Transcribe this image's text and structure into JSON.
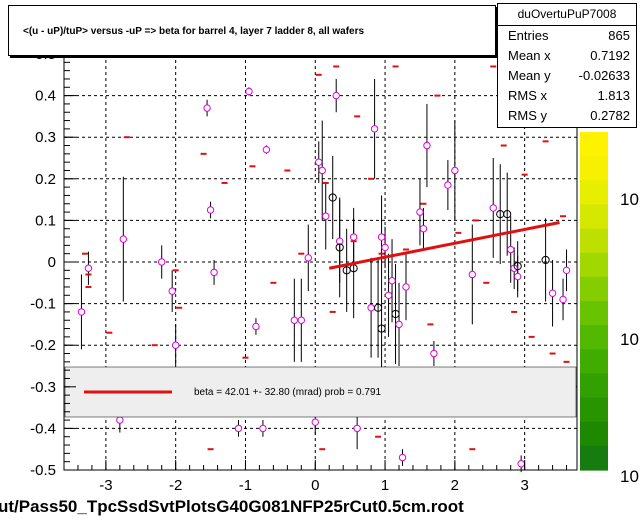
{
  "title": "<(u - uP)/tuP> versus  -uP => beta for barrel 4, layer 7 ladder 8, all wafers",
  "file_label": "ut/Pass50_TpcSsdSvtPlotsG40G081NFP25rCut0.5cm.root",
  "stats": {
    "name": "duOvertuPuP7008",
    "rows": [
      {
        "label": "Entries",
        "value": "865"
      },
      {
        "label": "Mean x",
        "value": "0.7192"
      },
      {
        "label": "Mean y",
        "value": "-0.02633"
      },
      {
        "label": "RMS x",
        "value": "1.813"
      },
      {
        "label": "RMS y",
        "value": "0.2782"
      }
    ]
  },
  "colors": {
    "fit_line": "#e01010",
    "marker_magenta": "#e000e0",
    "marker_black": "#000000",
    "mean_dash": "#e01010",
    "grid": "#000000",
    "legend_bg": "#eeeeee"
  },
  "chart_data": {
    "type": "scatter",
    "title": "<(u - uP)/tuP> versus  -uP => beta for barrel 4, layer 7 ladder 8, all wafers",
    "xlim": [
      -3.6,
      3.75
    ],
    "ylim": [
      -0.5,
      0.5
    ],
    "x_ticks": [
      -3,
      -2,
      -1,
      0,
      1,
      2,
      3
    ],
    "y_ticks": [
      -0.5,
      -0.4,
      -0.3,
      -0.2,
      -0.1,
      0,
      0.1,
      0.2,
      0.3,
      0.4,
      0.5
    ],
    "x_tick_labels": [
      "-3",
      "-2",
      "-1",
      "0",
      "1",
      "2",
      "3"
    ],
    "y_tick_labels": [
      "-0.5",
      "-0.4",
      "-0.3",
      "-0.2",
      "-0.1",
      "0",
      "0.1",
      "0.2",
      "0.3",
      "0.4",
      "0.5"
    ],
    "grid": true,
    "fit": {
      "x": [
        0.2,
        3.5
      ],
      "y": [
        -0.015,
        0.095
      ],
      "label": "beta =   42.01 +- 32.80 (mrad) prob = 0.791"
    },
    "colorbar_labels": [
      "10",
      "10",
      "10"
    ],
    "magenta_points": [
      {
        "x": -3.35,
        "y": -0.12,
        "err": 0.09
      },
      {
        "x": -3.25,
        "y": -0.015,
        "err": 0.04
      },
      {
        "x": -2.75,
        "y": 0.055,
        "err": 0.15
      },
      {
        "x": -2.2,
        "y": 0.0,
        "err": 0.04
      },
      {
        "x": -2.05,
        "y": -0.07,
        "err": 0.05
      },
      {
        "x": -2.0,
        "y": -0.2,
        "err": 0.05
      },
      {
        "x": -1.55,
        "y": 0.37,
        "err": 0.02
      },
      {
        "x": -1.5,
        "y": 0.125,
        "err": 0.02
      },
      {
        "x": -1.45,
        "y": -0.025,
        "err": 0.03
      },
      {
        "x": -0.95,
        "y": 0.41,
        "err": 0.01
      },
      {
        "x": -0.85,
        "y": -0.155,
        "err": 0.02
      },
      {
        "x": -0.7,
        "y": 0.27,
        "err": 0.01
      },
      {
        "x": -0.3,
        "y": -0.14,
        "err": 0.1
      },
      {
        "x": -0.2,
        "y": -0.14,
        "err": 0.1
      },
      {
        "x": -0.1,
        "y": 0.01,
        "err": 0.08
      },
      {
        "x": 0.05,
        "y": 0.24,
        "err": 0.05
      },
      {
        "x": 0.1,
        "y": 0.22,
        "err": 0.12
      },
      {
        "x": 0.3,
        "y": 0.4,
        "err": 0.04
      },
      {
        "x": 0.15,
        "y": 0.11,
        "err": 0.08
      },
      {
        "x": 0.35,
        "y": 0.05,
        "err": 0.1
      },
      {
        "x": 0.55,
        "y": 0.06,
        "err": 0.07
      },
      {
        "x": 0.8,
        "y": -0.11,
        "err": 0.12
      },
      {
        "x": 0.85,
        "y": 0.32,
        "err": 0.12
      },
      {
        "x": 0.95,
        "y": 0.06,
        "err": 0.1
      },
      {
        "x": 1.0,
        "y": 0.035,
        "err": 0.05
      },
      {
        "x": 1.05,
        "y": -0.08,
        "err": 0.1
      },
      {
        "x": 1.1,
        "y": -0.045,
        "err": 0.1
      },
      {
        "x": 1.2,
        "y": -0.15,
        "err": 0.1
      },
      {
        "x": 1.3,
        "y": -0.06,
        "err": 0.08
      },
      {
        "x": 1.5,
        "y": 0.12,
        "err": 0.08
      },
      {
        "x": 1.55,
        "y": 0.08,
        "err": 0.05
      },
      {
        "x": 1.6,
        "y": 0.28,
        "err": 0.1
      },
      {
        "x": 1.9,
        "y": 0.185,
        "err": 0.06
      },
      {
        "x": 2.0,
        "y": 0.22,
        "err": 0.12
      },
      {
        "x": 2.25,
        "y": -0.03,
        "err": 0.12
      },
      {
        "x": 2.55,
        "y": 0.13,
        "err": 0.12
      },
      {
        "x": 2.8,
        "y": 0.03,
        "err": 0.08
      },
      {
        "x": 2.85,
        "y": -0.015,
        "err": 0.05
      },
      {
        "x": 2.9,
        "y": -0.035,
        "err": 0.05
      },
      {
        "x": 3.4,
        "y": -0.075,
        "err": 0.08
      },
      {
        "x": 3.55,
        "y": -0.09,
        "err": 0.05
      },
      {
        "x": 3.6,
        "y": -0.02,
        "err": 0.05
      },
      {
        "x": 2.95,
        "y": -0.485,
        "err": 0.02
      },
      {
        "x": 1.25,
        "y": -0.47,
        "err": 0.02
      },
      {
        "x": -2.8,
        "y": -0.38,
        "err": 0.03
      },
      {
        "x": -0.75,
        "y": -0.4,
        "err": 0.02
      },
      {
        "x": -1.1,
        "y": -0.4,
        "err": 0.02
      },
      {
        "x": 0.0,
        "y": -0.385,
        "err": 0.03
      },
      {
        "x": 0.6,
        "y": -0.4,
        "err": 0.05
      },
      {
        "x": 1.7,
        "y": -0.22,
        "err": 0.03
      }
    ],
    "black_points": [
      {
        "x": 0.25,
        "y": 0.155,
        "err": 0.1
      },
      {
        "x": 0.35,
        "y": 0.035,
        "err": 0.12
      },
      {
        "x": 0.45,
        "y": -0.02,
        "err": 0.1
      },
      {
        "x": 0.55,
        "y": -0.015,
        "err": 0.12
      },
      {
        "x": 0.9,
        "y": -0.11,
        "err": 0.12
      },
      {
        "x": 0.95,
        "y": -0.16,
        "err": 0.12
      },
      {
        "x": 1.15,
        "y": -0.125,
        "err": 0.12
      },
      {
        "x": 2.65,
        "y": 0.115,
        "err": 0.12
      },
      {
        "x": 2.75,
        "y": 0.115,
        "err": 0.1
      },
      {
        "x": 2.9,
        "y": -0.01,
        "err": 0.06
      },
      {
        "x": 3.3,
        "y": 0.005,
        "err": 0.1
      }
    ],
    "mean_dashes": [
      {
        "x": -3.25,
        "y": -0.03
      },
      {
        "x": -3.3,
        "y": 0.02
      },
      {
        "x": -3.25,
        "y": -0.06
      },
      {
        "x": -2.95,
        "y": -0.17
      },
      {
        "x": -2.7,
        "y": 0.3
      },
      {
        "x": -2.3,
        "y": -0.2
      },
      {
        "x": -2.0,
        "y": -0.02
      },
      {
        "x": -1.95,
        "y": -0.11
      },
      {
        "x": -1.6,
        "y": 0.26
      },
      {
        "x": -1.3,
        "y": 0.19
      },
      {
        "x": -1.0,
        "y": -0.23
      },
      {
        "x": -0.9,
        "y": 0.23
      },
      {
        "x": -0.6,
        "y": -0.05
      },
      {
        "x": -0.4,
        "y": 0.22
      },
      {
        "x": -0.2,
        "y": 0.02
      },
      {
        "x": 0.05,
        "y": 0.45
      },
      {
        "x": 0.15,
        "y": 0.19
      },
      {
        "x": 0.25,
        "y": -0.12
      },
      {
        "x": 0.3,
        "y": 0.47
      },
      {
        "x": 0.55,
        "y": 0.05
      },
      {
        "x": 0.6,
        "y": 0.35
      },
      {
        "x": 0.8,
        "y": 0.2
      },
      {
        "x": 0.95,
        "y": 0.02
      },
      {
        "x": 1.15,
        "y": 0.47
      },
      {
        "x": 1.3,
        "y": 0.03
      },
      {
        "x": 1.55,
        "y": 0.14
      },
      {
        "x": 1.65,
        "y": -0.15
      },
      {
        "x": 1.75,
        "y": 0.4
      },
      {
        "x": 2.05,
        "y": 0.07
      },
      {
        "x": 2.3,
        "y": 0.1
      },
      {
        "x": 2.45,
        "y": -0.05
      },
      {
        "x": 2.55,
        "y": 0.47
      },
      {
        "x": 2.7,
        "y": 0.28
      },
      {
        "x": 2.85,
        "y": -0.12
      },
      {
        "x": 3.0,
        "y": 0.21
      },
      {
        "x": 3.1,
        "y": -0.18
      },
      {
        "x": 3.3,
        "y": 0.29
      },
      {
        "x": 3.4,
        "y": -0.22
      },
      {
        "x": 3.55,
        "y": 0.11
      },
      {
        "x": 3.6,
        "y": -0.24
      },
      {
        "x": 3.5,
        "y": 0.39
      },
      {
        "x": -1.5,
        "y": -0.45
      },
      {
        "x": 0.1,
        "y": -0.45
      },
      {
        "x": 0.9,
        "y": -0.42
      },
      {
        "x": 2.25,
        "y": -0.45
      },
      {
        "x": -2.6,
        "y": -0.34
      },
      {
        "x": 3.2,
        "y": -0.31
      }
    ]
  }
}
